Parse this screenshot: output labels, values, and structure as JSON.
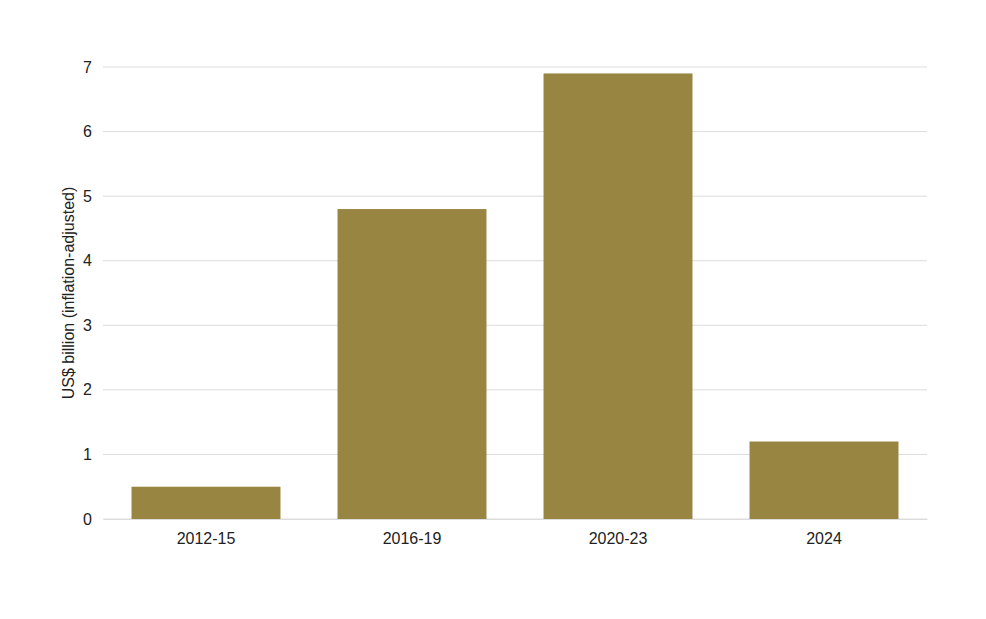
{
  "chart_data": {
    "type": "bar",
    "y_label": "US$ billion (inflation-adjusted)",
    "categories": [
      "2012-15",
      "2016-19",
      "2020-23",
      "2024"
    ],
    "values": [
      0.5,
      4.8,
      6.9,
      1.2
    ],
    "color": "#998542",
    "ylim": [
      0,
      7
    ],
    "yticks": [
      0,
      1,
      2,
      3,
      4,
      5,
      6,
      7
    ],
    "grid": true
  }
}
